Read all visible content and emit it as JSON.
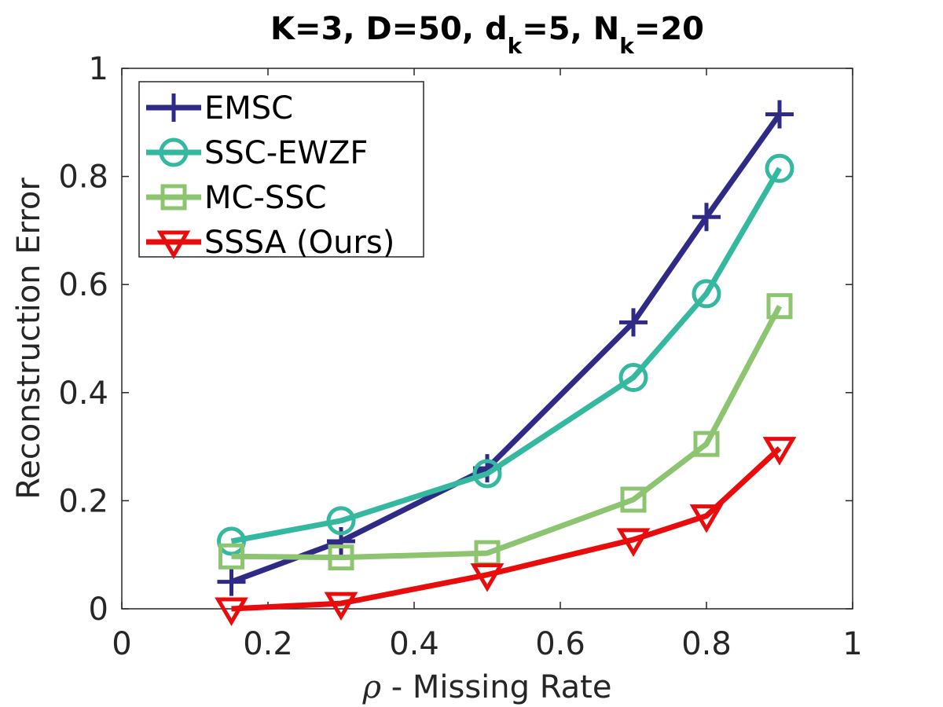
{
  "chart_data": {
    "type": "line",
    "title": {
      "main": "K=3, D=50, d",
      "sub1": "k",
      "mid": "=5, N",
      "sub2": "k",
      "tail": "=20"
    },
    "xlabel": {
      "symbol": "ρ",
      "text": " - Missing Rate"
    },
    "ylabel": "Reconstruction Error",
    "xlim": [
      0,
      1
    ],
    "ylim": [
      0,
      1
    ],
    "xticks": [
      0,
      0.2,
      0.4,
      0.6,
      0.8,
      1
    ],
    "xtick_labels": [
      "0",
      "0.2",
      "0.4",
      "0.6",
      "0.8",
      "1"
    ],
    "yticks": [
      0,
      0.2,
      0.4,
      0.6,
      0.8,
      1
    ],
    "ytick_labels": [
      "0",
      "0.2",
      "0.4",
      "0.6",
      "0.8",
      "1"
    ],
    "grid": false,
    "legend_position": "top-left",
    "x": [
      0.15,
      0.3,
      0.5,
      0.7,
      0.8,
      0.9
    ],
    "series": [
      {
        "name": "EMSC",
        "color": "#2e2a86",
        "marker": "plus",
        "values": [
          0.05,
          0.125,
          0.26,
          0.53,
          0.725,
          0.915
        ]
      },
      {
        "name": "SSC-EWZF",
        "color": "#35b8a0",
        "marker": "circle",
        "values": [
          0.125,
          0.163,
          0.25,
          0.428,
          0.583,
          0.815
        ]
      },
      {
        "name": "MC-SSC",
        "color": "#8cc46f",
        "marker": "square",
        "values": [
          0.097,
          0.095,
          0.103,
          0.202,
          0.305,
          0.56
        ]
      },
      {
        "name": "SSSA (Ours)",
        "color": "#e80c0c",
        "marker": "triangle-down",
        "values": [
          0.0,
          0.01,
          0.063,
          0.128,
          0.172,
          0.297
        ]
      }
    ]
  }
}
